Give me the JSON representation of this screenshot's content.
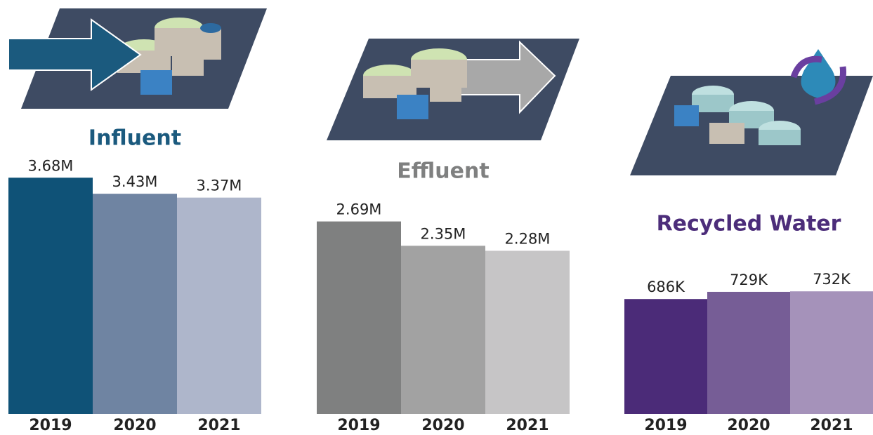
{
  "chart_data": [
    {
      "type": "bar",
      "title": "Influent",
      "title_color": "#1b5a7e",
      "categories": [
        "2019",
        "2020",
        "2021"
      ],
      "values": [
        3680000,
        3430000,
        3370000
      ],
      "value_labels": [
        "3.68M",
        "3.43M",
        "3.37M"
      ],
      "colors": [
        "#0f5277",
        "#6f84a2",
        "#aeb6cb"
      ],
      "ylim": [
        0,
        4000000
      ]
    },
    {
      "type": "bar",
      "title": "Effluent",
      "title_color": "#7f8080",
      "categories": [
        "2019",
        "2020",
        "2021"
      ],
      "values": [
        2690000,
        2350000,
        2280000
      ],
      "value_labels": [
        "2.69M",
        "2.35M",
        "2.28M"
      ],
      "colors": [
        "#7f8080",
        "#a2a2a2",
        "#c6c5c6"
      ],
      "ylim": [
        0,
        3000000
      ]
    },
    {
      "type": "bar",
      "title": "Recycled Water",
      "title_color": "#4c2d7a",
      "categories": [
        "2019",
        "2020",
        "2021"
      ],
      "values": [
        686000,
        729000,
        732000
      ],
      "value_labels": [
        "686K",
        "729K",
        "732K"
      ],
      "colors": [
        "#4b2b78",
        "#765d96",
        "#a592ba"
      ],
      "ylim": [
        0,
        800000
      ]
    }
  ]
}
